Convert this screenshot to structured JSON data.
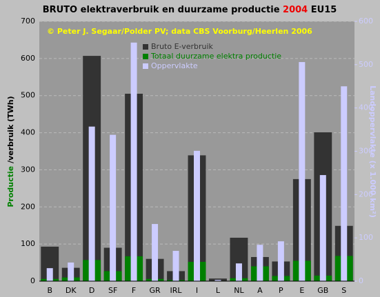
{
  "chart_data": {
    "type": "bar",
    "title": [
      "BRUTO elektraverbruik en duurzame productie ",
      "2004",
      " EU15"
    ],
    "subtitle": "© Peter J. Segaar/Polder PV; data CBS Voorburg/Heerlen 2006",
    "y_label": [
      "Productie",
      " /verbruik  (TWh)"
    ],
    "y2_label": "Landoppervlakte (x 1.000 km²)",
    "categories": [
      "B",
      "DK",
      "D",
      "SF",
      "F",
      "GR",
      "IRL",
      "I",
      "L",
      "NL",
      "A",
      "P",
      "E",
      "GB",
      "S"
    ],
    "series": [
      {
        "name": "Bruto E-verbruik",
        "color": "#333333",
        "values": [
          93,
          36,
          607,
          90,
          505,
          60,
          27,
          339,
          7,
          117,
          65,
          53,
          275,
          401,
          149
        ]
      },
      {
        "name": "Totaal duurzame elektra productie",
        "color": "#008000",
        "values": [
          6,
          10,
          57,
          27,
          67,
          6,
          3,
          52,
          1,
          8,
          40,
          14,
          55,
          15,
          68
        ]
      },
      {
        "name": "Oppervlakte",
        "color": "#ccccff",
        "axis": "y2",
        "values": [
          30,
          43,
          357,
          338,
          551,
          132,
          70,
          301,
          3,
          41,
          84,
          92,
          506,
          245,
          450
        ]
      }
    ],
    "ylim": [
      0,
      700
    ],
    "yticks": [
      0,
      100,
      200,
      300,
      400,
      500,
      600,
      700
    ],
    "y2lim": [
      0,
      600
    ],
    "y2ticks": [
      0,
      100,
      200,
      300,
      400,
      500,
      600
    ],
    "grid": true,
    "legend": "top"
  }
}
